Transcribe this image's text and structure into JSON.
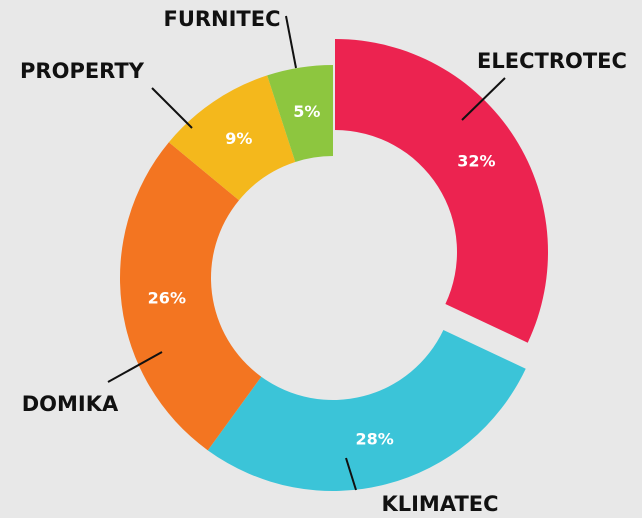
{
  "chart_data": {
    "type": "donut",
    "categories": [
      "ELECTROTEC",
      "KLIMATEC",
      "DOMIKA",
      "PROPERTY",
      "FURNITEC"
    ],
    "values": [
      32,
      28,
      26,
      9,
      5
    ],
    "value_labels": [
      "32%",
      "28%",
      "26%",
      "9%",
      "5%"
    ],
    "colors": [
      "#ec2350",
      "#3bc4d8",
      "#f37521",
      "#f4b81c",
      "#8dc63f"
    ]
  }
}
